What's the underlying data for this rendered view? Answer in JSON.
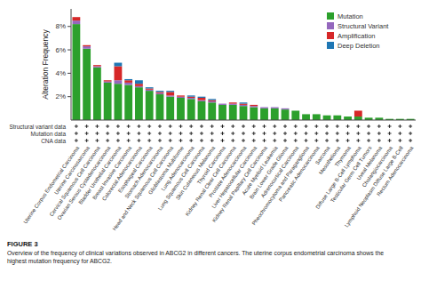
{
  "chart_data": {
    "type": "bar",
    "stacked": true,
    "title": "FIGURE 3",
    "subtitle": "Overview of the frequency of clinical variations observed in ABCG2 in different cancers. The uterine corpus endometrial carcinoma shows the\nhighest mutation frequency for ABCG2.",
    "ylabel": "Alteration Frequency",
    "annotations": [
      "Structural variant data",
      "Mutation data",
      "CNA data"
    ],
    "categories": [
      "Uterine Corpus Endometrial Carcinoma",
      "Uterine Carcinosarcoma",
      "Cervical Squamous Cell Carcinoma",
      "Ovarian Serous Cystadenocarcinoma",
      "Bladder Urothelial Carcinoma",
      "Breast Invasive Carcinoma",
      "Colorectal Adenocarcinoma",
      "Esophageal Carcinoma",
      "Stomach Adenocarcinoma",
      "Head and Neck Squamous Cell Carcinoma",
      "Glioblastoma Multiforme",
      "Lung Adenocarcinoma",
      "Lung Squamous Cell Carcinoma",
      "Skin Cutaneous Melanoma",
      "Thyroid Carcinoma",
      "Kidney Renal Clear Cell Carcinoma",
      "Prostate Adenocarcinoma",
      "Liver Hepatocellular Carcinoma",
      "Kidney Renal Papillary Cell Carcinoma",
      "Acute Myeloid Leukemia",
      "Brain Lower Grade Glioma",
      "Adrenocortical Carcinoma",
      "Pheochromocytoma and Paraganglioma",
      "Pancreatic Adenocarcinoma",
      "Sarcoma",
      "Mesothelioma",
      "Thymoma",
      "Diffuse Large B-Cell Lymphoma",
      "Testicular Germ Cell Tumors",
      "Uveal Melanoma",
      "Cholangiocarcinoma",
      "Lymphoid Neoplasm Diffuse Large B-Cell",
      "Rectum Adenocarcinoma"
    ],
    "series": [
      {
        "name": "Mutation",
        "color": "#2ca02c",
        "values": [
          0.082,
          0.061,
          0.045,
          0.032,
          0.031,
          0.03,
          0.028,
          0.025,
          0.022,
          0.02,
          0.019,
          0.018,
          0.016,
          0.015,
          0.013,
          0.013,
          0.012,
          0.011,
          0.01,
          0.01,
          0.009,
          0.008,
          0.005,
          0.005,
          0.004,
          0.004,
          0.003,
          0.003,
          0.002,
          0.002,
          0.001,
          0.001,
          0.001
        ]
      },
      {
        "name": "Structural Variant",
        "color": "#9467bd",
        "values": [
          0.003,
          0.002,
          0.001,
          0.001,
          0.003,
          0.002,
          0.001,
          0.001,
          0.001,
          0.001,
          0.001,
          0.001,
          0.001,
          0.001,
          0.001,
          0.001,
          0.001,
          0.001,
          0.001,
          0.001,
          0.001,
          0.0,
          0.0,
          0.0,
          0.0,
          0.0,
          0.0,
          0.0,
          0.0,
          0.0,
          0.0,
          0.0,
          0.0
        ]
      },
      {
        "name": "Amplification",
        "color": "#d62728",
        "values": [
          0.003,
          0.001,
          0.001,
          0.001,
          0.012,
          0.002,
          0.002,
          0.001,
          0.001,
          0.003,
          0.001,
          0.001,
          0.002,
          0.001,
          0.0,
          0.001,
          0.001,
          0.001,
          0.0,
          0.0,
          0.0,
          0.0,
          0.0,
          0.0,
          0.0,
          0.0,
          0.0,
          0.005,
          0.0,
          0.0,
          0.0,
          0.0,
          0.0
        ]
      },
      {
        "name": "Deep Deletion",
        "color": "#1f77b4",
        "values": [
          0.0,
          0.0,
          0.0,
          0.0,
          0.003,
          0.001,
          0.003,
          0.001,
          0.001,
          0.001,
          0.0,
          0.001,
          0.001,
          0.001,
          0.0,
          0.0,
          0.001,
          0.0,
          0.0,
          0.0,
          0.0,
          0.0,
          0.0,
          0.0,
          0.0,
          0.0,
          0.0,
          0.0,
          0.0,
          0.0,
          0.0,
          0.0,
          0.0
        ]
      }
    ],
    "ylim": [
      0,
      0.095
    ],
    "yticks": [
      {
        "value": 0.02,
        "label": "2%"
      },
      {
        "value": 0.04,
        "label": "4%"
      },
      {
        "value": 0.06,
        "label": "6%"
      },
      {
        "value": 0.08,
        "label": "8%"
      }
    ],
    "grid": false,
    "legend": "upper right"
  }
}
